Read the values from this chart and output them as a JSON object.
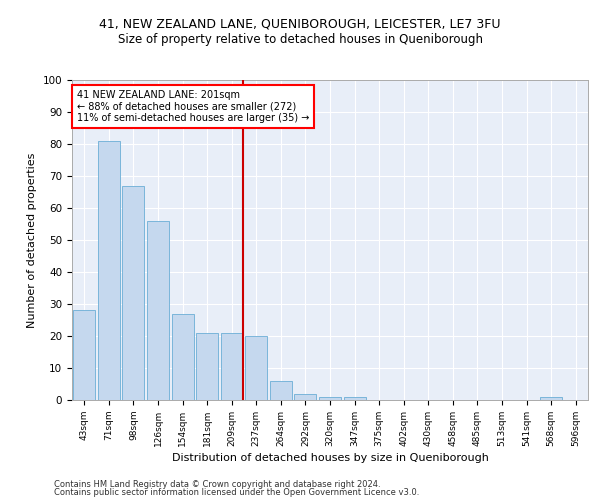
{
  "title1": "41, NEW ZEALAND LANE, QUENIBOROUGH, LEICESTER, LE7 3FU",
  "title2": "Size of property relative to detached houses in Queniborough",
  "xlabel": "Distribution of detached houses by size in Queniborough",
  "ylabel": "Number of detached properties",
  "annotation_line1": "41 NEW ZEALAND LANE: 201sqm",
  "annotation_line2": "← 88% of detached houses are smaller (272)",
  "annotation_line3": "11% of semi-detached houses are larger (35) →",
  "categories": [
    "43sqm",
    "71sqm",
    "98sqm",
    "126sqm",
    "154sqm",
    "181sqm",
    "209sqm",
    "237sqm",
    "264sqm",
    "292sqm",
    "320sqm",
    "347sqm",
    "375sqm",
    "402sqm",
    "430sqm",
    "458sqm",
    "485sqm",
    "513sqm",
    "541sqm",
    "568sqm",
    "596sqm"
  ],
  "values": [
    28,
    81,
    67,
    56,
    27,
    21,
    21,
    20,
    6,
    2,
    1,
    1,
    0,
    0,
    0,
    0,
    0,
    0,
    0,
    1,
    0
  ],
  "bar_color": "#c5d8ee",
  "bar_edge_color": "#6baed6",
  "vline_x": 6.45,
  "vline_color": "#cc0000",
  "ylim": [
    0,
    100
  ],
  "yticks": [
    0,
    10,
    20,
    30,
    40,
    50,
    60,
    70,
    80,
    90,
    100
  ],
  "background_color": "#e8eef8",
  "grid_color": "#ffffff",
  "footer1": "Contains HM Land Registry data © Crown copyright and database right 2024.",
  "footer2": "Contains public sector information licensed under the Open Government Licence v3.0."
}
